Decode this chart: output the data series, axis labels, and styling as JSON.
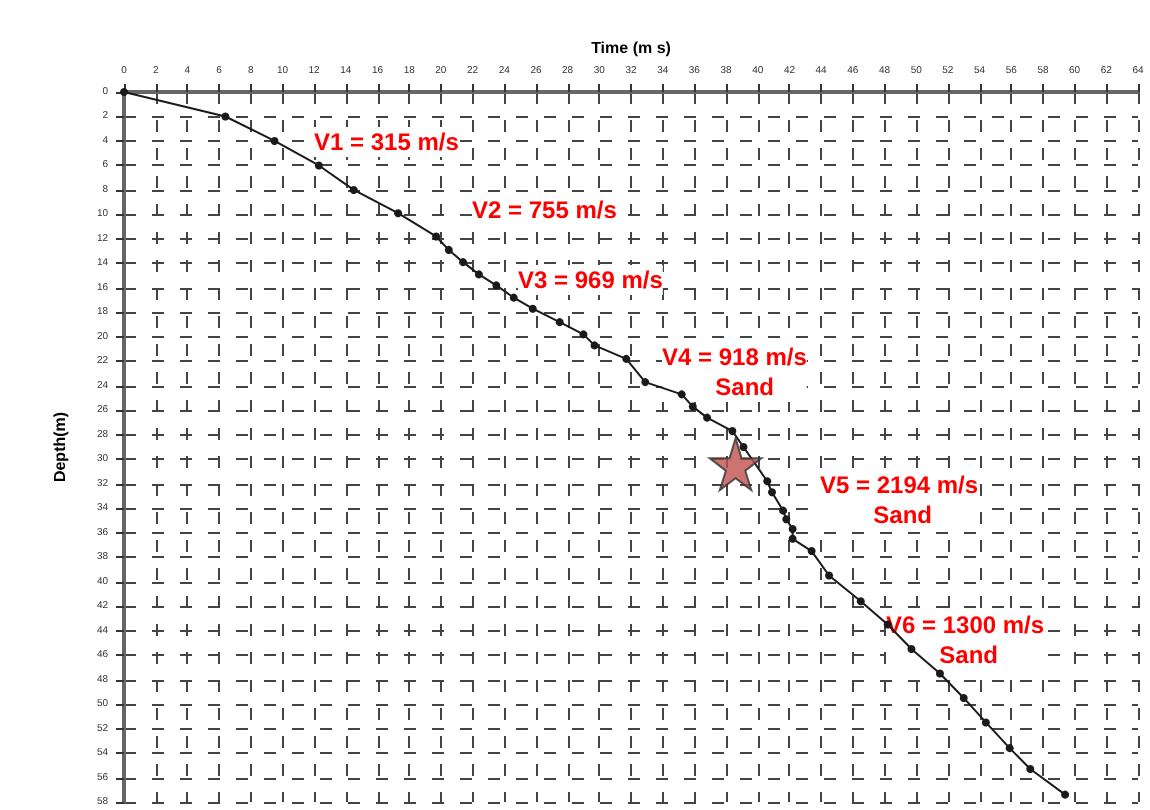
{
  "chart_data": {
    "type": "line",
    "xlabel": "Time (m s)",
    "ylabel": "Depth(m)",
    "xlim": [
      0,
      64
    ],
    "xticks": [
      0,
      2,
      4,
      6,
      8,
      10,
      12,
      14,
      16,
      18,
      20,
      22,
      24,
      26,
      28,
      30,
      32,
      34,
      36,
      38,
      40,
      42,
      44,
      46,
      48,
      50,
      52,
      54,
      56,
      58,
      60,
      62,
      64
    ],
    "ylim": [
      58,
      0
    ],
    "yticks": [
      0,
      2,
      4,
      6,
      8,
      10,
      12,
      14,
      16,
      18,
      20,
      22,
      24,
      26,
      28,
      30,
      32,
      34,
      36,
      38,
      40,
      42,
      44,
      46,
      48,
      50,
      52,
      54,
      56,
      58
    ],
    "grid": true,
    "marker": "circle",
    "line_style": "solid",
    "series": [
      {
        "color": "#1a1a1a",
        "x": [
          0,
          6.4,
          9.5,
          12.3,
          14.5,
          17.3,
          19.7,
          20.5,
          21.4,
          22.4,
          23.5,
          24.6,
          25.8,
          27.5,
          29,
          29.7,
          31.7,
          32.9,
          35.2,
          35.9,
          36.8,
          38.4,
          39.1,
          40.6,
          40.9,
          41.6,
          41.8,
          42.2,
          42.2,
          43.4,
          44.5,
          46.5,
          48.2,
          49.7,
          51.5,
          53,
          54.4,
          55.9,
          57.2,
          59.4
        ],
        "values": [
          0,
          2,
          4,
          6,
          8,
          9.9,
          11.8,
          12.9,
          13.9,
          14.9,
          15.8,
          16.8,
          17.7,
          18.8,
          19.8,
          20.7,
          21.8,
          23.7,
          24.7,
          25.7,
          26.6,
          27.7,
          29,
          31.8,
          32.7,
          34.2,
          34.9,
          35.7,
          36.5,
          37.5,
          39.5,
          41.6,
          43.5,
          45.5,
          47.5,
          49.5,
          51.5,
          53.6,
          55.3,
          57.4
        ]
      },
      {
        "type": "scatter",
        "marker": "star",
        "color": "#c0504d",
        "x": [
          38.6
        ],
        "values": [
          30.4
        ]
      }
    ],
    "annotations": [
      "V1 = 315 m/s",
      "V2 = 755 m/s",
      "V3 = 969 m/s",
      "V4 = 918 m/s\nSand",
      "V5 = 2194 m/s\nSand",
      "V6 = 1300 m/s\nSand"
    ]
  }
}
